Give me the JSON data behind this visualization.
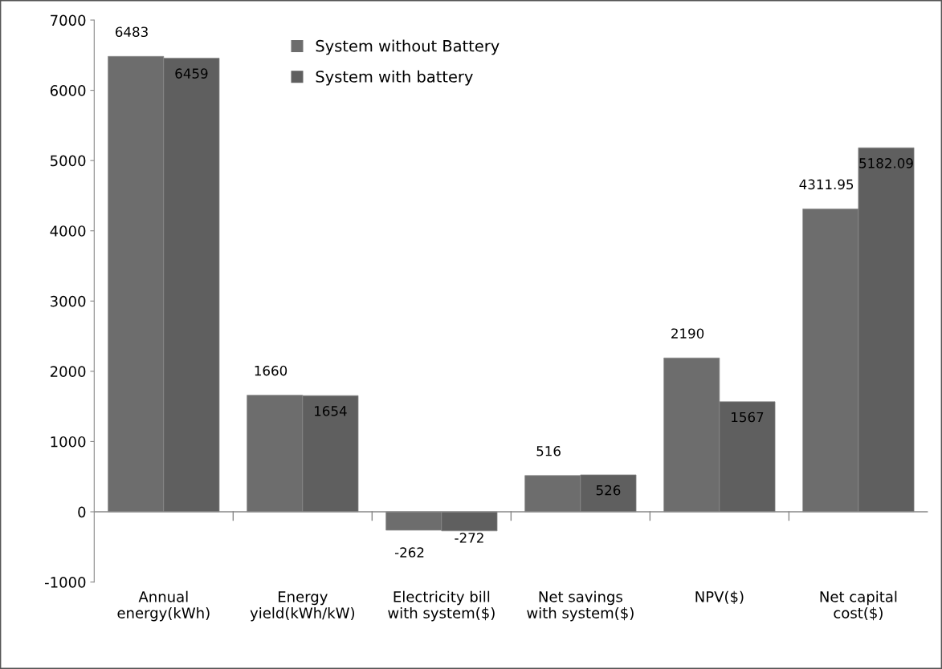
{
  "chart_data": {
    "type": "bar",
    "categories": [
      "Annual\nenergy(kWh)",
      "Energy\nyield(kWh/kW)",
      "Electricity bill\nwith system($)",
      "Net savings\nwith system($)",
      "NPV($)",
      "Net capital\ncost($)"
    ],
    "series": [
      {
        "name": "System without Battery",
        "color": "#6d6d6d",
        "values": [
          6483,
          1660,
          -262,
          516,
          2190,
          4311.95
        ]
      },
      {
        "name": "System with battery",
        "color": "#5f5f5f",
        "values": [
          6459,
          1654,
          -272,
          526,
          1567,
          5182.09
        ]
      }
    ],
    "ylim": [
      -1000,
      7000
    ],
    "yticks": [
      -1000,
      0,
      1000,
      2000,
      3000,
      4000,
      5000,
      6000,
      7000
    ],
    "data_labels": true,
    "legend": "top"
  }
}
